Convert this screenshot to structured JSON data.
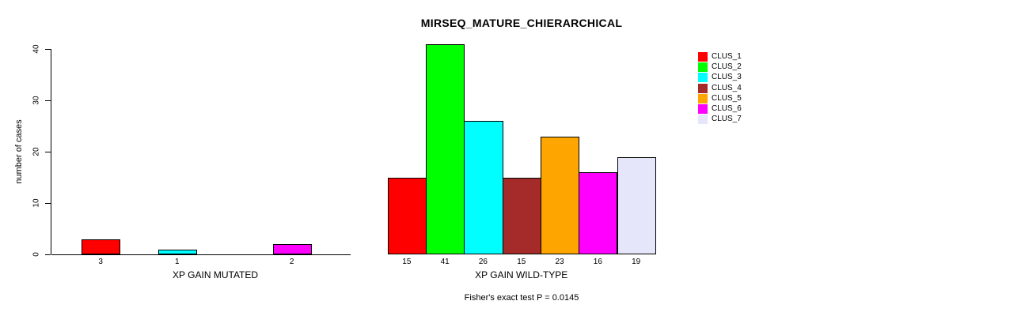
{
  "chart_data": {
    "type": "bar",
    "title": "MIRSEQ_MATURE_CHIERARCHICAL",
    "ylabel": "number of cases",
    "xlabel": "",
    "ylim": [
      0,
      40
    ],
    "yticks": [
      0,
      10,
      20,
      30,
      40
    ],
    "grid": false,
    "legend_position": "right",
    "clusters": [
      "CLUS_1",
      "CLUS_2",
      "CLUS_3",
      "CLUS_4",
      "CLUS_5",
      "CLUS_6",
      "CLUS_7"
    ],
    "colors": [
      "#FF0000",
      "#00FF00",
      "#00FFFF",
      "#A52A2A",
      "#FFA500",
      "#FF00FF",
      "#E6E6FA"
    ],
    "groups": [
      {
        "label": "XP GAIN MUTATED",
        "values": [
          3,
          0,
          1,
          0,
          0,
          2,
          0
        ]
      },
      {
        "label": "XP GAIN WILD-TYPE",
        "values": [
          15,
          41,
          26,
          15,
          23,
          16,
          19
        ]
      }
    ],
    "footnote": "Fisher's exact test P = 0.0145"
  }
}
